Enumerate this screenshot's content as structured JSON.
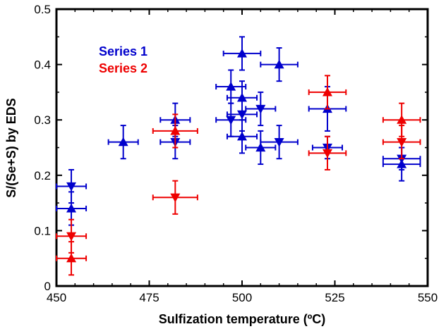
{
  "chart_data": {
    "type": "scatter",
    "xlabel": "Sulfization temperature (ºC)",
    "ylabel": "S/(Se+S) by EDS",
    "xlim": [
      450,
      550
    ],
    "ylim": [
      0,
      0.5
    ],
    "x_ticks": [
      450,
      475,
      500,
      525,
      550
    ],
    "y_ticks": [
      0,
      0.1,
      0.2,
      0.3,
      0.4,
      0.5
    ],
    "x_tick_labels": [
      "450",
      "475",
      "500",
      "525",
      "550"
    ],
    "y_tick_labels": [
      "0",
      "0.1",
      "0.2",
      "0.3",
      "0.4",
      "0.5"
    ],
    "grid": false,
    "legend_position": "top-left",
    "series": [
      {
        "name": "Series 1",
        "color": "#0000cc",
        "points": [
          {
            "x": 454,
            "y": 0.18,
            "marker": "down",
            "xerr": 4,
            "yerr": 0.03
          },
          {
            "x": 454,
            "y": 0.14,
            "marker": "up",
            "xerr": 4,
            "yerr": 0.03
          },
          {
            "x": 468,
            "y": 0.26,
            "marker": "up",
            "xerr": 4,
            "yerr": 0.03
          },
          {
            "x": 482,
            "y": 0.3,
            "marker": "up",
            "xerr": 4,
            "yerr": 0.03
          },
          {
            "x": 482,
            "y": 0.26,
            "marker": "down",
            "xerr": 4,
            "yerr": 0.03
          },
          {
            "x": 497,
            "y": 0.36,
            "marker": "up",
            "xerr": 4,
            "yerr": 0.03
          },
          {
            "x": 497,
            "y": 0.3,
            "marker": "down",
            "xerr": 4,
            "yerr": 0.03
          },
          {
            "x": 500,
            "y": 0.42,
            "marker": "up",
            "xerr": 5,
            "yerr": 0.03
          },
          {
            "x": 500,
            "y": 0.34,
            "marker": "up",
            "xerr": 4,
            "yerr": 0.03
          },
          {
            "x": 500,
            "y": 0.31,
            "marker": "down",
            "xerr": 4,
            "yerr": 0.03
          },
          {
            "x": 500,
            "y": 0.27,
            "marker": "up",
            "xerr": 4,
            "yerr": 0.03
          },
          {
            "x": 505,
            "y": 0.32,
            "marker": "down",
            "xerr": 4,
            "yerr": 0.03
          },
          {
            "x": 505,
            "y": 0.25,
            "marker": "up",
            "xerr": 4,
            "yerr": 0.03
          },
          {
            "x": 510,
            "y": 0.4,
            "marker": "up",
            "xerr": 5,
            "yerr": 0.03
          },
          {
            "x": 510,
            "y": 0.26,
            "marker": "down",
            "xerr": 5,
            "yerr": 0.03
          },
          {
            "x": 523,
            "y": 0.32,
            "marker": "up",
            "xerr": 5,
            "yerr": 0.04
          },
          {
            "x": 523,
            "y": 0.25,
            "marker": "down",
            "xerr": 4,
            "yerr": 0.02
          },
          {
            "x": 543,
            "y": 0.23,
            "marker": "down",
            "xerr": 5,
            "yerr": 0.02
          },
          {
            "x": 543,
            "y": 0.22,
            "marker": "up",
            "xerr": 5,
            "yerr": 0.03
          }
        ]
      },
      {
        "name": "Series 2",
        "color": "#ee0000",
        "points": [
          {
            "x": 454,
            "y": 0.09,
            "marker": "down",
            "xerr": 4,
            "yerr": 0.03
          },
          {
            "x": 454,
            "y": 0.05,
            "marker": "up",
            "xerr": 4,
            "yerr": 0.03
          },
          {
            "x": 482,
            "y": 0.28,
            "marker": "up",
            "xerr": 6,
            "yerr": 0.03
          },
          {
            "x": 482,
            "y": 0.16,
            "marker": "down",
            "xerr": 6,
            "yerr": 0.03
          },
          {
            "x": 523,
            "y": 0.35,
            "marker": "up",
            "xerr": 5,
            "yerr": 0.03
          },
          {
            "x": 523,
            "y": 0.24,
            "marker": "down",
            "xerr": 5,
            "yerr": 0.03
          },
          {
            "x": 543,
            "y": 0.3,
            "marker": "up",
            "xerr": 5,
            "yerr": 0.03
          },
          {
            "x": 543,
            "y": 0.26,
            "marker": "down",
            "xerr": 5,
            "yerr": 0.03
          }
        ]
      }
    ]
  }
}
